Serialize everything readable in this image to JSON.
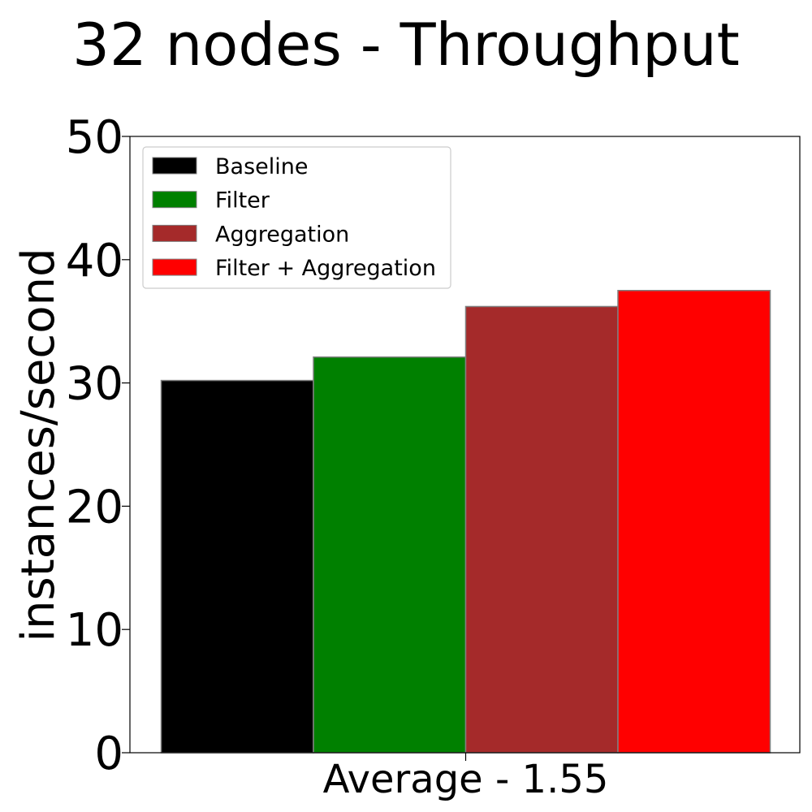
{
  "chart_data": {
    "type": "bar",
    "title": "32 nodes - Throughput",
    "xlabel": "",
    "ylabel": "instances/second",
    "categories": [
      "Average - 1.55"
    ],
    "series": [
      {
        "name": "Baseline",
        "color": "#000000",
        "values": [
          30.2
        ]
      },
      {
        "name": "Filter",
        "color": "#008000",
        "values": [
          32.1
        ]
      },
      {
        "name": "Aggregation",
        "color": "#a52a2a",
        "values": [
          36.2
        ]
      },
      {
        "name": "Filter + Aggregation",
        "color": "#ff0000",
        "values": [
          37.5
        ]
      }
    ],
    "ylim": [
      0,
      50
    ],
    "yticks": [
      "0",
      "10",
      "20",
      "30",
      "40",
      "50"
    ],
    "grid": false,
    "legend_position": "top-left",
    "bar_edge_color": "#808080"
  }
}
